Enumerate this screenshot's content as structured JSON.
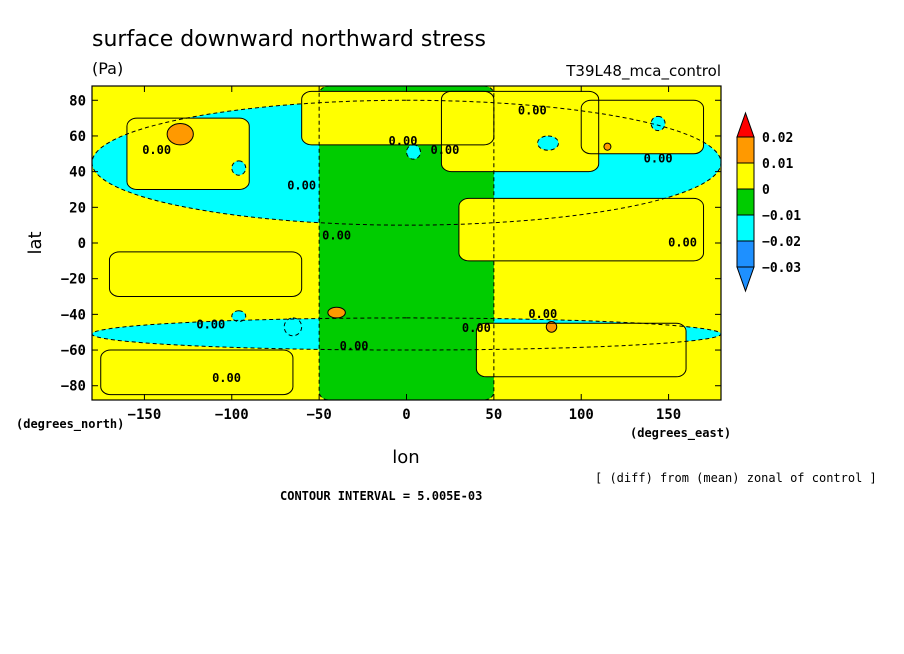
{
  "chart_data": {
    "type": "heatmap",
    "title": "surface downward northward stress",
    "units": "(Pa)",
    "experiment": "T39L48_mca_control",
    "xlabel": "lon",
    "ylabel": "lat",
    "x_units": "(degrees_east)",
    "y_units": "(degrees_north)",
    "xlim": [
      -180,
      180
    ],
    "ylim": [
      -88,
      88
    ],
    "x_ticks": [
      -150,
      -100,
      -50,
      0,
      50,
      100,
      150
    ],
    "y_ticks": [
      -80,
      -60,
      -40,
      -20,
      0,
      20,
      40,
      60,
      80
    ],
    "x_tick_labels": [
      "−150",
      "−100",
      "−50",
      "0",
      "50",
      "100",
      "150"
    ],
    "y_tick_labels": [
      "−80",
      "−60",
      "−40",
      "−20",
      "0",
      "20",
      "40",
      "60",
      "80"
    ],
    "note": "[ (diff) from (mean) zonal of control ]",
    "contour_interval": "CONTOUR INTERVAL = 5.005E-03",
    "colorbar": {
      "levels": [
        -0.03,
        -0.02,
        -0.01,
        0,
        0.01,
        0.02
      ],
      "level_labels": [
        "−0.03",
        "−0.02",
        "−0.01",
        "0",
        "0.01",
        "0.02"
      ],
      "colors": [
        "#1e90ff",
        "#00ffff",
        "#00cc00",
        "#ffff00",
        "#ff9900",
        "#ff0000"
      ],
      "under_color": "#1e90ff",
      "over_color": "#ff0000"
    },
    "regions": [
      {
        "value": -0.015,
        "lon": -180,
        "lat": 10,
        "w": 360,
        "h": 70
      },
      {
        "value": -0.015,
        "lon": -180,
        "lat": -60,
        "w": 360,
        "h": 18
      },
      {
        "value": -0.005,
        "lon": -50,
        "lat": -88,
        "w": 100,
        "h": 176
      },
      {
        "value": 0.005,
        "lon": -160,
        "lat": 30,
        "w": 70,
        "h": 40
      },
      {
        "value": 0.005,
        "lon": -60,
        "lat": 55,
        "w": 110,
        "h": 30
      },
      {
        "value": 0.005,
        "lon": 20,
        "lat": 40,
        "w": 90,
        "h": 45
      },
      {
        "value": 0.005,
        "lon": 100,
        "lat": 50,
        "w": 70,
        "h": 30
      },
      {
        "value": 0.005,
        "lon": 30,
        "lat": -10,
        "w": 140,
        "h": 35
      },
      {
        "value": 0.005,
        "lon": -170,
        "lat": -30,
        "w": 110,
        "h": 25
      },
      {
        "value": 0.005,
        "lon": 40,
        "lat": -75,
        "w": 120,
        "h": 30
      },
      {
        "value": 0.005,
        "lon": -175,
        "lat": -85,
        "w": 110,
        "h": 25
      },
      {
        "value": -0.02,
        "lon": -100,
        "lat": 38,
        "w": 8,
        "h": 8
      },
      {
        "value": -0.02,
        "lon": 75,
        "lat": 52,
        "w": 12,
        "h": 8
      },
      {
        "value": -0.02,
        "lon": 140,
        "lat": 63,
        "w": 8,
        "h": 8
      },
      {
        "value": -0.02,
        "lon": -100,
        "lat": -44,
        "w": 8,
        "h": 6
      },
      {
        "value": -0.02,
        "lon": -70,
        "lat": -52,
        "w": 10,
        "h": 10
      },
      {
        "value": -0.02,
        "lon": 0,
        "lat": 47,
        "w": 8,
        "h": 8
      },
      {
        "value": 0.015,
        "lon": -137,
        "lat": 55,
        "w": 15,
        "h": 12
      },
      {
        "value": 0.015,
        "lon": -45,
        "lat": -42,
        "w": 10,
        "h": 6
      },
      {
        "value": 0.015,
        "lon": 80,
        "lat": -50,
        "w": 6,
        "h": 6
      },
      {
        "value": 0.015,
        "lon": 113,
        "lat": 52,
        "w": 4,
        "h": 4
      }
    ],
    "contour_labels": [
      {
        "text": "0.00",
        "lon": -143,
        "lat": 50
      },
      {
        "text": "0.00",
        "lon": -2,
        "lat": 55
      },
      {
        "text": "0.00",
        "lon": 22,
        "lat": 50
      },
      {
        "text": "0.00",
        "lon": 72,
        "lat": 72
      },
      {
        "text": "0.00",
        "lon": 144,
        "lat": 45
      },
      {
        "text": "0.00",
        "lon": -60,
        "lat": 30
      },
      {
        "text": "0.00",
        "lon": -40,
        "lat": 2
      },
      {
        "text": "0.00",
        "lon": 158,
        "lat": -2
      },
      {
        "text": "0.00",
        "lon": -112,
        "lat": -48
      },
      {
        "text": "0.00",
        "lon": -30,
        "lat": -60
      },
      {
        "text": "0.00",
        "lon": 40,
        "lat": -50
      },
      {
        "text": "0.00",
        "lon": 78,
        "lat": -42
      },
      {
        "text": "0.00",
        "lon": -103,
        "lat": -78
      }
    ]
  }
}
